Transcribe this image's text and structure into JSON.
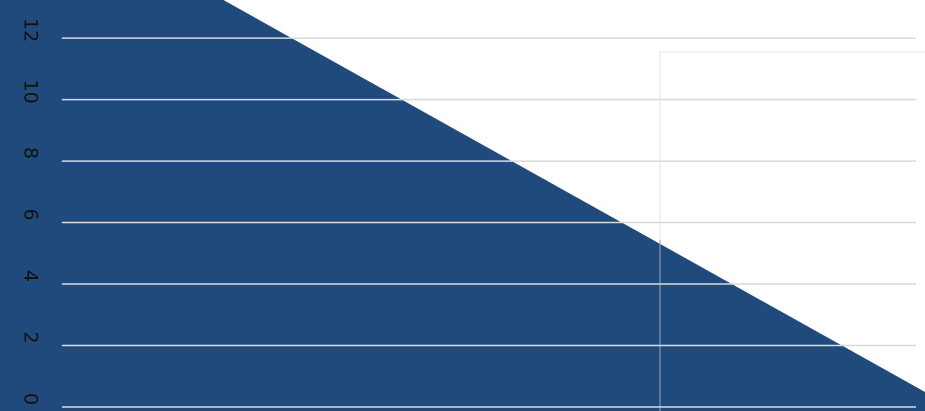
{
  "chart_data": {
    "type": "area",
    "categories": [
      null,
      null
    ],
    "values": [
      17.3,
      0.49
    ],
    "color": "#214a7c",
    "ylim": [
      -0.13,
      13.24
    ],
    "yticks": [
      0,
      2,
      4,
      6,
      8,
      10,
      12
    ],
    "grid": true
  }
}
